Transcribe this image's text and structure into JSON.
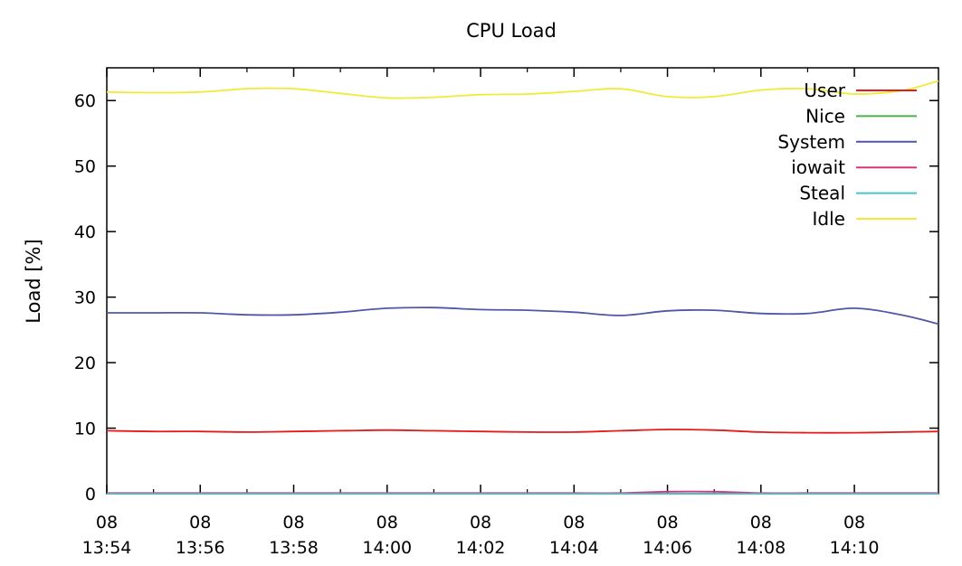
{
  "chart_data": {
    "type": "line",
    "title": "CPU Load",
    "xlabel": "",
    "ylabel": "Load [%]",
    "ylim": [
      0,
      65
    ],
    "yticks": [
      0,
      10,
      20,
      30,
      40,
      50,
      60
    ],
    "xlim": [
      "13:54",
      "14:11:48"
    ],
    "xticks": [
      {
        "time": "13:54",
        "line1": "08",
        "line2": "13:54"
      },
      {
        "time": "13:56",
        "line1": "08",
        "line2": "13:56"
      },
      {
        "time": "13:58",
        "line1": "08",
        "line2": "13:58"
      },
      {
        "time": "14:00",
        "line1": "08",
        "line2": "14:00"
      },
      {
        "time": "14:02",
        "line1": "08",
        "line2": "14:02"
      },
      {
        "time": "14:04",
        "line1": "08",
        "line2": "14:04"
      },
      {
        "time": "14:06",
        "line1": "08",
        "line2": "14:06"
      },
      {
        "time": "14:08",
        "line1": "08",
        "line2": "14:08"
      },
      {
        "time": "14:10",
        "line1": "08",
        "line2": "14:10"
      }
    ],
    "grid": false,
    "legend_position": "top-right",
    "x": [
      "13:54:00",
      "13:55:00",
      "13:56:00",
      "13:57:00",
      "13:58:00",
      "13:59:00",
      "14:00:00",
      "14:01:00",
      "14:02:00",
      "14:03:00",
      "14:04:00",
      "14:05:00",
      "14:06:00",
      "14:07:00",
      "14:08:00",
      "14:09:00",
      "14:10:00",
      "14:11:00",
      "14:11:48"
    ],
    "series": [
      {
        "name": "User",
        "color": "#e41a1c",
        "values": [
          9.6,
          9.5,
          9.5,
          9.4,
          9.5,
          9.6,
          9.7,
          9.6,
          9.5,
          9.4,
          9.4,
          9.6,
          9.8,
          9.7,
          9.4,
          9.3,
          9.3,
          9.4,
          9.5
        ]
      },
      {
        "name": "Nice",
        "color": "#4daf4a",
        "values": [
          0,
          0,
          0,
          0,
          0,
          0,
          0,
          0,
          0,
          0,
          0,
          0,
          0,
          0,
          0,
          0,
          0,
          0,
          0
        ]
      },
      {
        "name": "System",
        "color": "#4f57a8",
        "values": [
          27.6,
          27.6,
          27.6,
          27.3,
          27.3,
          27.7,
          28.3,
          28.4,
          28.1,
          28.0,
          27.7,
          27.2,
          27.9,
          28.0,
          27.5,
          27.5,
          28.3,
          27.3,
          25.9
        ]
      },
      {
        "name": "iowait",
        "color": "#d6337e",
        "values": [
          0.1,
          0.1,
          0.1,
          0.1,
          0.1,
          0.1,
          0.1,
          0.1,
          0.1,
          0.1,
          0.1,
          0.1,
          0.3,
          0.3,
          0.1,
          0.1,
          0.1,
          0.1,
          0.1
        ]
      },
      {
        "name": "Steal",
        "color": "#4bc2cc",
        "values": [
          0,
          0,
          0,
          0,
          0,
          0,
          0,
          0,
          0,
          0,
          0,
          0,
          0,
          0,
          0,
          0,
          0,
          0,
          0
        ]
      },
      {
        "name": "Idle",
        "color": "#f2ea3a",
        "values": [
          61.3,
          61.2,
          61.3,
          61.8,
          61.8,
          61.1,
          60.4,
          60.5,
          60.9,
          61.0,
          61.4,
          61.8,
          60.6,
          60.6,
          61.6,
          61.8,
          61.0,
          61.5,
          63.0
        ]
      }
    ]
  }
}
